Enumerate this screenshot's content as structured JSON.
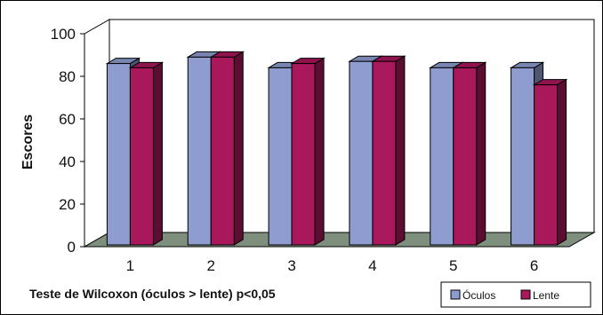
{
  "chart_data": {
    "type": "bar",
    "categories": [
      "1",
      "2",
      "3",
      "4",
      "5",
      "6"
    ],
    "series": [
      {
        "name": "Óculos",
        "values": [
          86,
          89,
          84,
          87,
          84,
          84
        ],
        "color": "#8E9CD0"
      },
      {
        "name": "Lente",
        "values": [
          84,
          89,
          86,
          87,
          84,
          76
        ],
        "color": "#A8185A"
      }
    ],
    "ylabel": "Escores",
    "ylim": [
      0,
      100
    ],
    "yticks": [
      0,
      20,
      40,
      60,
      80,
      100
    ],
    "grid": false,
    "legend_position": "bottom-right",
    "style": "3d-bars",
    "floor_color": "#7F8F7E",
    "annotation": "Teste de Wilcoxon (óculos > lente) p<0,05"
  }
}
